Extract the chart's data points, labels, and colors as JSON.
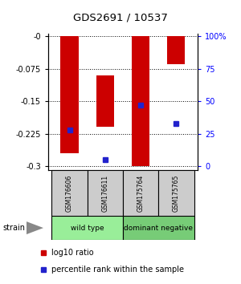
{
  "title": "GDS2691 / 10537",
  "samples": [
    "GSM176606",
    "GSM176611",
    "GSM175764",
    "GSM175765"
  ],
  "log10_values": [
    -0.27,
    -0.09,
    -0.3,
    -0.065
  ],
  "percentile_ranks": [
    28,
    5,
    47,
    33
  ],
  "bar_tops": [
    0,
    -0.21,
    0,
    0
  ],
  "ylim_min": -0.31,
  "ylim_max": 0.005,
  "yticks": [
    0,
    -0.075,
    -0.15,
    -0.225,
    -0.3
  ],
  "ytick_labels": [
    "-0",
    "-0.075",
    "-0.15",
    "-0.225",
    "-0.3"
  ],
  "bar_color": "#cc0000",
  "percentile_color": "#2222cc",
  "bar_width": 0.5,
  "groups": [
    {
      "label": "wild type",
      "samples": [
        0,
        1
      ],
      "color": "#99ee99"
    },
    {
      "label": "dominant negative",
      "samples": [
        2,
        3
      ],
      "color": "#77cc77"
    }
  ],
  "legend_red_label": "log10 ratio",
  "legend_blue_label": "percentile rank within the sample",
  "strain_label": "strain",
  "background_color": "#ffffff",
  "fig_width": 3.0,
  "fig_height": 3.54
}
